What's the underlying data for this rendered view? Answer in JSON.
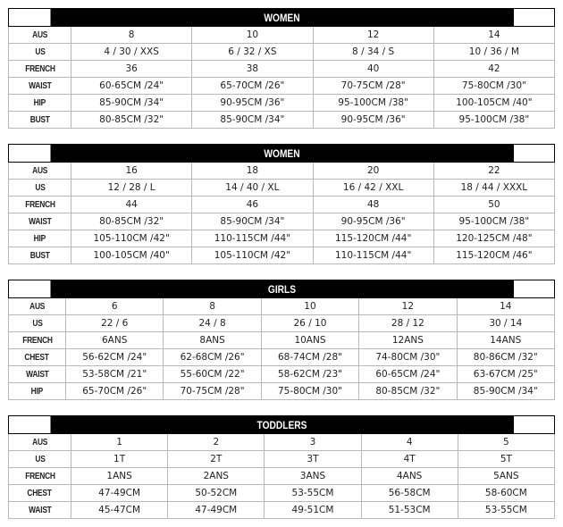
{
  "tables": [
    {
      "title": "WOMEN",
      "rows": [
        {
          "label": "AUS",
          "values": [
            "8",
            "10",
            "12",
            "14"
          ]
        },
        {
          "label": "US",
          "values": [
            "4 / 30 / XXS",
            "6 / 32 / XS",
            "8 / 34 / S",
            "10 / 36 / M"
          ]
        },
        {
          "label": "FRENCH",
          "values": [
            "36",
            "38",
            "40",
            "42"
          ]
        },
        {
          "label": "WAIST",
          "values": [
            "60-65CM /24\"",
            "65-70CM /26\"",
            "70-75CM /28\"",
            "75-80CM /30\""
          ]
        },
        {
          "label": "HIP",
          "values": [
            "85-90CM /34\"",
            "90-95CM /36\"",
            "95-100CM /38\"",
            "100-105CM /40\""
          ]
        },
        {
          "label": "BUST",
          "values": [
            "80-85CM /32\"",
            "85-90CM /34\"",
            "90-95CM /36\"",
            "95-100CM /38\""
          ]
        }
      ]
    },
    {
      "title": "WOMEN",
      "rows": [
        {
          "label": "AUS",
          "values": [
            "16",
            "18",
            "20",
            "22"
          ]
        },
        {
          "label": "US",
          "values": [
            "12 / 28 / L",
            "14 / 40 / XL",
            "16 / 42 / XXL",
            "18 / 44 / XXXL"
          ]
        },
        {
          "label": "FRENCH",
          "values": [
            "44",
            "46",
            "48",
            "50"
          ]
        },
        {
          "label": "WAIST",
          "values": [
            "80-85CM /32\"",
            "85-90CM /34\"",
            "90-95CM /36\"",
            "95-100CM /38\""
          ]
        },
        {
          "label": "HIP",
          "values": [
            "105-110CM /42\"",
            "110-115CM /44\"",
            "115-120CM /44\"",
            "120-125CM /48\""
          ]
        },
        {
          "label": "BUST",
          "values": [
            "100-105CM /40\"",
            "105-110CM /42\"",
            "110-115CM /44\"",
            "115-120CM /46\""
          ]
        }
      ]
    },
    {
      "title": "GIRLS",
      "rows": [
        {
          "label": "AUS",
          "values": [
            "6",
            "8",
            "10",
            "12",
            "14"
          ]
        },
        {
          "label": "US",
          "values": [
            "22 / 6",
            "24 / 8",
            "26 / 10",
            "28 / 12",
            "30 / 14"
          ]
        },
        {
          "label": "FRENCH",
          "values": [
            "6ANS",
            "8ANS",
            "10ANS",
            "12ANS",
            "14ANS"
          ]
        },
        {
          "label": "CHEST",
          "values": [
            "56-62CM /24\"",
            "62-68CM /26\"",
            "68-74CM /28\"",
            "74-80CM /30\"",
            "80-86CM /32\""
          ]
        },
        {
          "label": "WAIST",
          "values": [
            "53-58CM /21\"",
            "55-60CM /22\"",
            "58-62CM /23\"",
            "60-65CM /24\"",
            "63-67CM /25\""
          ]
        },
        {
          "label": "HIP",
          "values": [
            "65-70CM /26\"",
            "70-75CM /28\"",
            "75-80CM /30\"",
            "80-85CM /32\"",
            "85-90CM /34\""
          ]
        }
      ]
    },
    {
      "title": "TODDLERS",
      "rows": [
        {
          "label": "AUS",
          "values": [
            "1",
            "2",
            "3",
            "4",
            "5"
          ]
        },
        {
          "label": "US",
          "values": [
            "1T",
            "2T",
            "3T",
            "4T",
            "5T"
          ]
        },
        {
          "label": "FRENCH",
          "values": [
            "1ANS",
            "2ANS",
            "3ANS",
            "4ANS",
            "5ANS"
          ]
        },
        {
          "label": "CHEST",
          "values": [
            "47-49CM",
            "50-52CM",
            "53-55CM",
            "56-58CM",
            "58-60CM"
          ]
        },
        {
          "label": "WAIST",
          "values": [
            "45-47CM",
            "47-49CM",
            "49-51CM",
            "51-53CM",
            "53-55CM"
          ]
        }
      ]
    }
  ]
}
